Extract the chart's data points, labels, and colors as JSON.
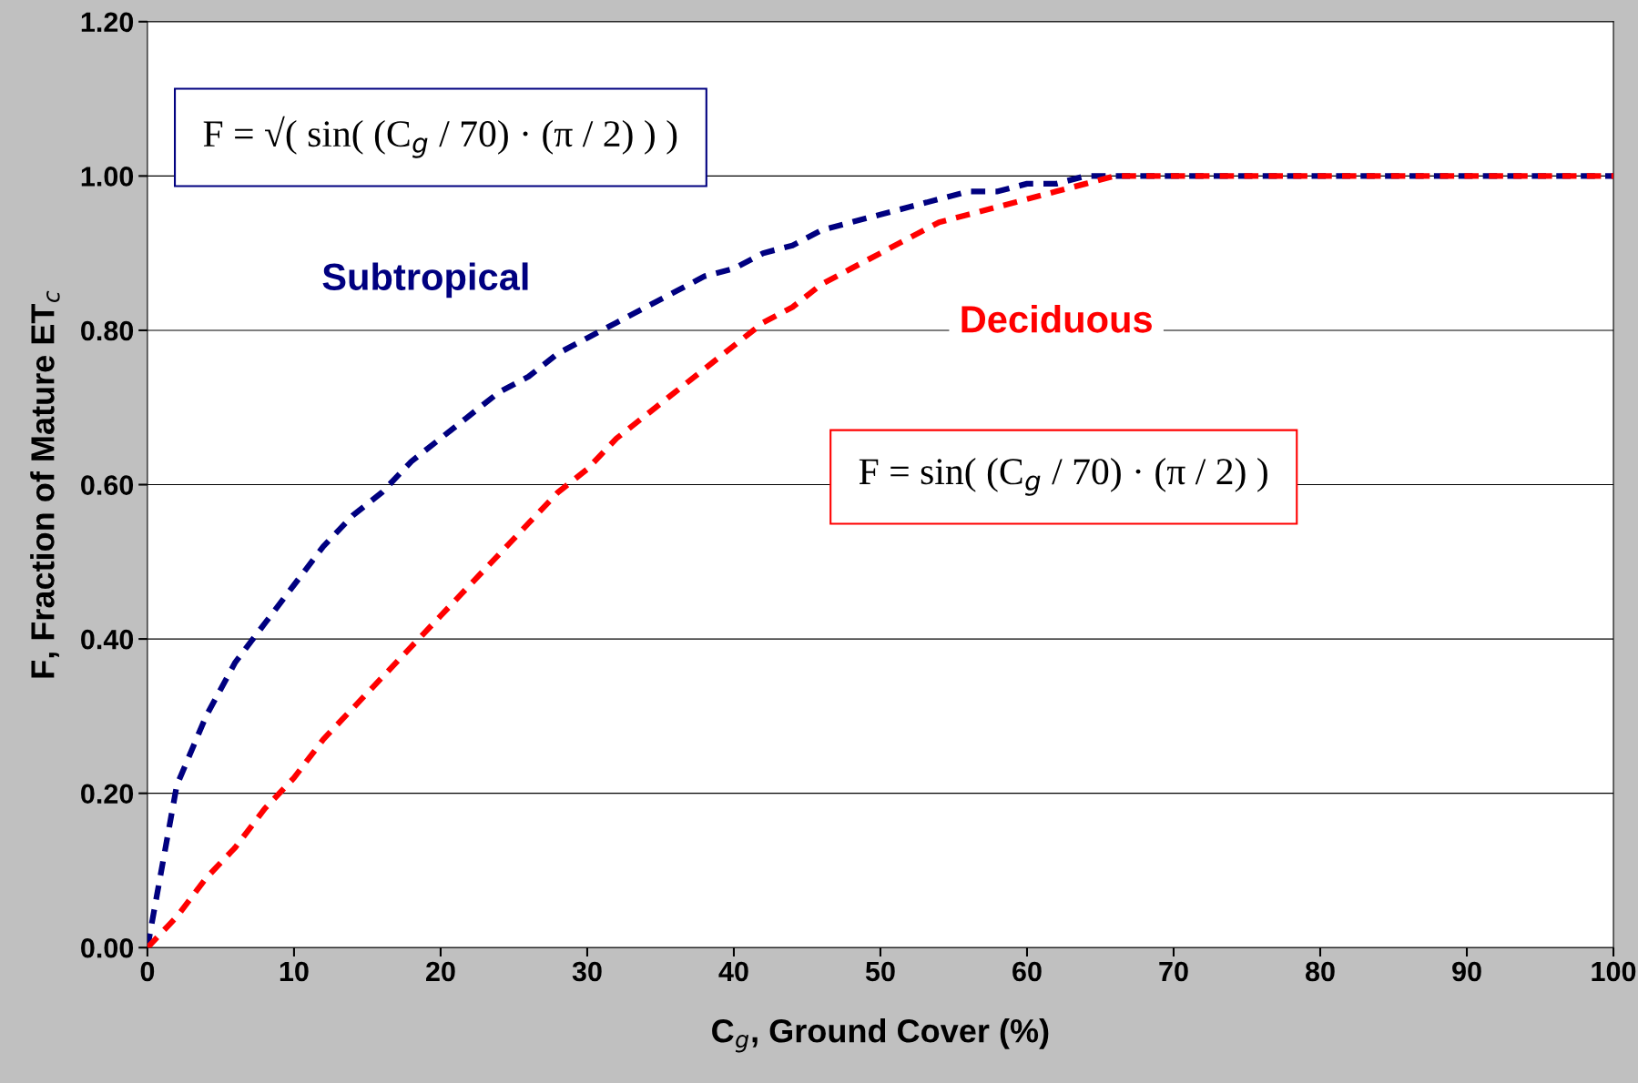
{
  "chart_data": {
    "type": "line",
    "xlabel": "C$_{g}$, Ground Cover (%)",
    "ylabel": "F, Fraction of Mature ET$_{c}$",
    "x": [
      0,
      2,
      4,
      6,
      8,
      10,
      12,
      14,
      16,
      18,
      20,
      22,
      24,
      26,
      28,
      30,
      32,
      34,
      36,
      38,
      40,
      42,
      44,
      46,
      48,
      50,
      52,
      54,
      56,
      58,
      60,
      62,
      64,
      66,
      68,
      70,
      80,
      90,
      100
    ],
    "series": [
      {
        "name": "Subtropical",
        "color": "#000080",
        "values": [
          0,
          0.21,
          0.3,
          0.37,
          0.42,
          0.47,
          0.52,
          0.56,
          0.59,
          0.63,
          0.66,
          0.69,
          0.72,
          0.74,
          0.77,
          0.79,
          0.81,
          0.83,
          0.85,
          0.87,
          0.88,
          0.9,
          0.91,
          0.93,
          0.94,
          0.95,
          0.96,
          0.97,
          0.98,
          0.98,
          0.99,
          0.99,
          1.0,
          1.0,
          1.0,
          1.0,
          1.0,
          1.0,
          1.0
        ]
      },
      {
        "name": "Deciduous",
        "color": "#ff0000",
        "values": [
          0,
          0.04,
          0.09,
          0.13,
          0.18,
          0.22,
          0.27,
          0.31,
          0.35,
          0.39,
          0.43,
          0.47,
          0.51,
          0.55,
          0.59,
          0.62,
          0.66,
          0.69,
          0.72,
          0.75,
          0.78,
          0.81,
          0.83,
          0.86,
          0.88,
          0.9,
          0.92,
          0.94,
          0.95,
          0.96,
          0.97,
          0.98,
          0.99,
          1.0,
          1.0,
          1.0,
          1.0,
          1.0,
          1.0
        ]
      }
    ],
    "annotations": [
      "F = √( sin( (C$_{g}$ / 70) · (π / 2) ) )",
      "F = sin( (C$_{g}$ / 70) · (π / 2) )"
    ],
    "xlim": [
      0,
      100
    ],
    "xticks": [
      0,
      10,
      20,
      30,
      40,
      50,
      60,
      70,
      80,
      90,
      100
    ],
    "ylim": [
      0,
      1.2
    ],
    "yticks": [
      {
        "value": 0,
        "label": "0.00"
      },
      {
        "value": 0.2,
        "label": "0.20"
      },
      {
        "value": 0.4,
        "label": "0.40"
      },
      {
        "value": 0.6,
        "label": "0.60"
      },
      {
        "value": 0.8,
        "label": "0.80"
      },
      {
        "value": 1.0,
        "label": "1.00"
      },
      {
        "value": 1.2,
        "label": "1.20"
      }
    ],
    "grid": "y",
    "line_style": "dashed",
    "marker": "none",
    "legend": false
  }
}
